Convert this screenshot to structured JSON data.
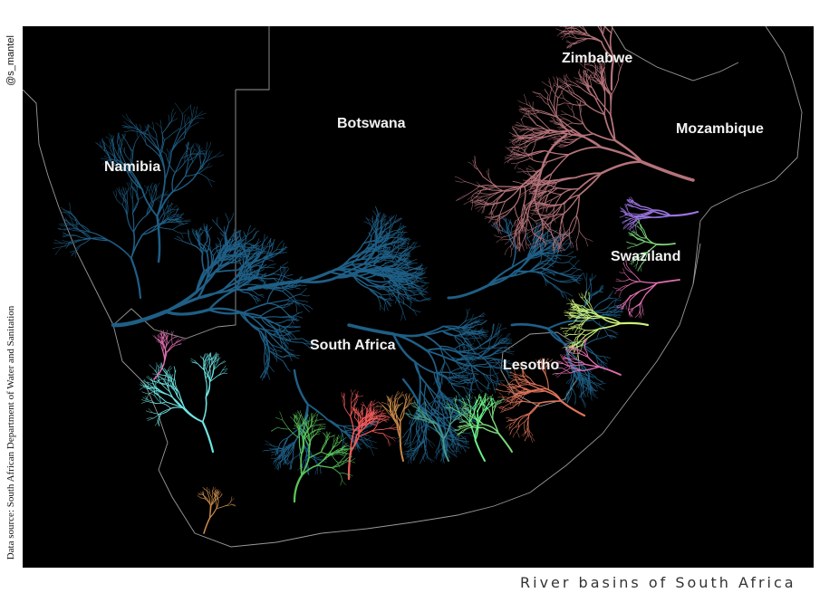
{
  "caption": "River basins of South Africa",
  "credit_handle": "@s_mantel",
  "data_source": "Data source: South African Department of Water and Sanitation",
  "labels": {
    "zimbabwe": "Zimbabwe",
    "botswana": "Botswana",
    "mozambique": "Mozambique",
    "namibia": "Namibia",
    "swaziland": "Swaziland",
    "south_africa": "South Africa",
    "lesotho": "Lesotho"
  },
  "colors": {
    "background": "#000000",
    "border": "#9a9a9a",
    "orange_basin": "#1f5f86",
    "limpopo_basin": "#b5737a",
    "inkomati_basin": "#9a74e0",
    "usutu_basin": "#7ad67a",
    "pongola_basin": "#e06fb0",
    "tugela_basin": "#c9f07a",
    "mzimvubu_basin": "#e0755a",
    "olifants_doring_basin": "#6fe6e6",
    "breede_basin": "#5ac45a",
    "gouritz_basin": "#f05a5a",
    "gamtoos_basin": "#c98a4a",
    "sundays_basin": "#4a9a8a",
    "great_fish_basin": "#6af08a"
  }
}
